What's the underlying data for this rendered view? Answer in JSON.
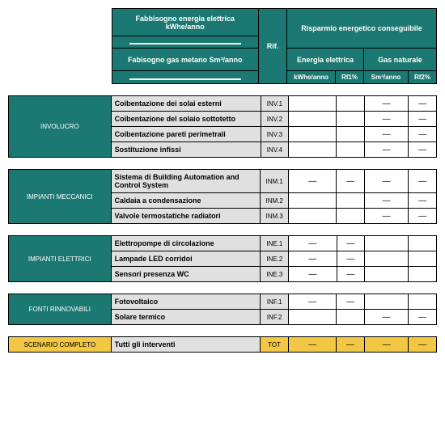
{
  "header": {
    "left_top": "Fabbisogno energia elettrica kWhe/anno",
    "left_bottom": "Fabisogno gas metano Sm³/anno",
    "rif": "Rif.",
    "right_top": "Risparmio energetico conseguibile",
    "col_elec": "Energia elettrica",
    "col_gas": "Gas naturale",
    "sub1": "kWhe/anno",
    "sub2": "Rf1%",
    "sub3": "Sm³/anno",
    "sub4": "Rf2%"
  },
  "sections": [
    {
      "category": "INVOLUCRO",
      "rows": [
        {
          "desc": "Coibentazione dei solai esterni",
          "rif": "INV.1",
          "v1": "",
          "v2": "",
          "v3": "—",
          "v4": "—"
        },
        {
          "desc": "Coibentazione del solaio sottotetto",
          "rif": "INV.2",
          "v1": "",
          "v2": "",
          "v3": "—",
          "v4": "—"
        },
        {
          "desc": "Coibentazione pareti perimetrali",
          "rif": "INV.3",
          "v1": "",
          "v2": "",
          "v3": "—",
          "v4": "—"
        },
        {
          "desc": "Sostituzione infissi",
          "rif": "INV.4",
          "v1": "",
          "v2": "",
          "v3": "—",
          "v4": "—"
        }
      ]
    },
    {
      "category": "IMPIANTI MECCANICI",
      "rows": [
        {
          "desc": "Sistema di Building Automation and Control System",
          "rif": "INM.1",
          "v1": "—",
          "v2": "—",
          "v3": "—",
          "v4": "—"
        },
        {
          "desc": "Caldaia a condensazione",
          "rif": "INM.2",
          "v1": "",
          "v2": "",
          "v3": "—",
          "v4": "—"
        },
        {
          "desc": "Valvole termostatiche radiatori",
          "rif": "INM.3",
          "v1": "",
          "v2": "",
          "v3": "—",
          "v4": "—"
        }
      ]
    },
    {
      "category": "IMPIANTI ELETTRICI",
      "rows": [
        {
          "desc": "Elettropompe di circolazione",
          "rif": "INE.1",
          "v1": "—",
          "v2": "—",
          "v3": "",
          "v4": ""
        },
        {
          "desc": "Lampade LED corridoi",
          "rif": "INE.2",
          "v1": "—",
          "v2": "—",
          "v3": "",
          "v4": ""
        },
        {
          "desc": "Sensori presenza WC",
          "rif": "INE.3",
          "v1": "—",
          "v2": "—",
          "v3": "",
          "v4": ""
        }
      ]
    },
    {
      "category": "FONTI RINNOVABILI",
      "rows": [
        {
          "desc": "Fotovoltaico",
          "rif": "INF.1",
          "v1": "—",
          "v2": "—",
          "v3": "",
          "v4": ""
        },
        {
          "desc": "Solare termico",
          "rif": "INF.2",
          "v1": "",
          "v2": "",
          "v3": "—",
          "v4": "—"
        }
      ]
    }
  ],
  "scenario": {
    "category": "SCENARIO COMPLETO",
    "desc": "Tutti gli interventi",
    "rif": "TOT",
    "v1": "—",
    "v2": "—",
    "v3": "—",
    "v4": "—"
  },
  "colors": {
    "teal": "#1c7872",
    "grey": "#e0e0e0",
    "yellow": "#f2c744",
    "white": "#ffffff",
    "black": "#000000"
  }
}
